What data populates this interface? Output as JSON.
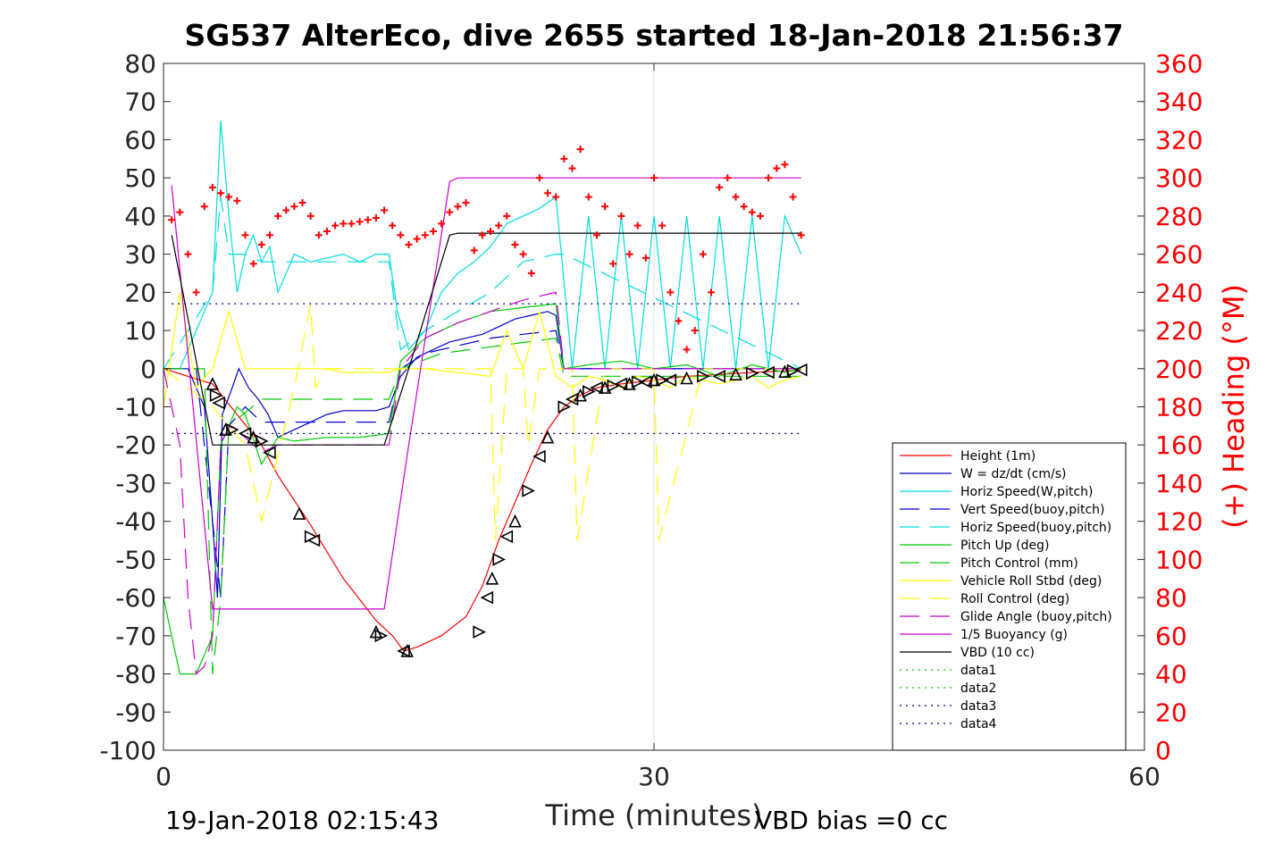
{
  "chart_data": {
    "type": "line",
    "title": "SG537 AlterEco, dive 2655 started 18-Jan-2018 21:56:37",
    "xlabel": "Time (minutes)",
    "ylabel_right": "(+) Heading (°M)",
    "footer_left": "19-Jan-2018 02:15:43",
    "footer_right": "VBD bias =0 cc",
    "xlim": [
      0,
      60
    ],
    "ylim_left": [
      -100,
      80
    ],
    "ylim_right": [
      0,
      360
    ],
    "x_ticks": [
      "0",
      "30",
      "60"
    ],
    "x_tick_values": [
      0,
      30,
      60
    ],
    "y_ticks_left": [
      "-100",
      "-90",
      "-80",
      "-70",
      "-60",
      "-50",
      "-40",
      "-30",
      "-20",
      "-10",
      "0",
      "10",
      "20",
      "30",
      "40",
      "50",
      "60",
      "70",
      "80"
    ],
    "y_tick_values_left": [
      -100,
      -90,
      -80,
      -70,
      -60,
      -50,
      -40,
      -30,
      -20,
      -10,
      0,
      10,
      20,
      30,
      40,
      50,
      60,
      70,
      80
    ],
    "y_ticks_right": [
      "0",
      "20",
      "40",
      "60",
      "80",
      "100",
      "120",
      "140",
      "160",
      "180",
      "200",
      "220",
      "240",
      "260",
      "280",
      "300",
      "320",
      "340",
      "360"
    ],
    "y_tick_values_right": [
      0,
      20,
      40,
      60,
      80,
      100,
      120,
      140,
      160,
      180,
      200,
      220,
      240,
      260,
      280,
      300,
      320,
      340,
      360
    ],
    "grid": "x at 30 only",
    "legend_position": "lower-right",
    "series": [
      {
        "name": "Height (1m)",
        "color": "#ff0000",
        "style": "solid",
        "x": [
          0,
          3,
          6,
          7,
          9,
          11,
          13,
          14,
          14.7,
          15.5,
          17,
          18.5,
          19.5,
          20.5,
          21.5,
          22.5,
          23.5,
          24.5,
          25.5,
          26.5,
          28,
          30,
          32,
          34,
          36,
          38,
          39
        ],
        "y": [
          0,
          -4,
          -20,
          -28,
          -41,
          -55,
          -66,
          -70,
          -74,
          -73,
          -70,
          -65,
          -57,
          -45,
          -35,
          -25,
          -16,
          -10,
          -7,
          -5,
          -4,
          -3,
          -2,
          -1.5,
          -1,
          -0.6,
          -0.3
        ]
      },
      {
        "name": "W = dz/dt (cm/s)",
        "color": "#0000cc",
        "style": "solid",
        "x": [
          0,
          1.5,
          2.5,
          3,
          3.3,
          3.6,
          4.2,
          4.6,
          5.2,
          5.8,
          6.4,
          7,
          8,
          9,
          10,
          11,
          12,
          13,
          13.8,
          14.5,
          15.5,
          16.5,
          17.5,
          18.5,
          19.5,
          20.5,
          21.5,
          22.5,
          23.5,
          24,
          24.5,
          25.5,
          27,
          29,
          31,
          33,
          35,
          37,
          39
        ],
        "y": [
          0,
          0,
          -10,
          -40,
          -60,
          -12,
          -5,
          0,
          -5,
          -8,
          -12,
          -18,
          -16,
          -14,
          -12,
          -11,
          -11,
          -11,
          -10,
          -2,
          3,
          5,
          7,
          8,
          9,
          11,
          13,
          14,
          15,
          14,
          0,
          0,
          0,
          0,
          0,
          0,
          0,
          0,
          0
        ]
      },
      {
        "name": "Horiz Speed(W,pitch)",
        "color": "#00dddd",
        "style": "solid",
        "x": [
          0,
          1,
          2,
          3,
          3.5,
          4,
          4.5,
          5,
          5.5,
          6,
          6.5,
          7,
          8,
          9,
          10,
          11,
          12,
          13,
          13.8,
          14.3,
          15,
          16,
          17,
          18,
          19,
          20,
          21,
          22,
          23,
          24,
          25,
          26,
          27,
          28,
          29,
          30,
          31,
          32,
          33,
          34,
          35,
          36,
          37,
          38,
          39
        ],
        "y": [
          0,
          0,
          10,
          20,
          65,
          40,
          20,
          30,
          35,
          28,
          32,
          20,
          30,
          28,
          29,
          30,
          28,
          30,
          30,
          15,
          5,
          10,
          20,
          25,
          28,
          32,
          38,
          40,
          42,
          45,
          0,
          40,
          0,
          40,
          0,
          40,
          0,
          40,
          0,
          40,
          0,
          40,
          0,
          40,
          30
        ]
      },
      {
        "name": "Vert Speed(buoy,pitch)",
        "color": "#0000cc",
        "style": "dashed",
        "x": [
          0,
          2,
          3,
          3.5,
          4,
          5,
          6,
          13.8,
          14.5,
          16,
          18,
          20,
          22,
          24,
          24.5,
          39
        ],
        "y": [
          0,
          0,
          -40,
          -60,
          -15,
          -10,
          -14,
          -14,
          0,
          4,
          6,
          8,
          9,
          10,
          0,
          0
        ]
      },
      {
        "name": "Horiz Speed(buoy,pitch)",
        "color": "#00dddd",
        "style": "dashed",
        "x": [
          0,
          3,
          3.5,
          4,
          5,
          6,
          13.8,
          14.5,
          16,
          18,
          20,
          22,
          24,
          24.5,
          39
        ],
        "y": [
          0,
          20,
          45,
          30,
          30,
          28,
          28,
          5,
          10,
          15,
          20,
          28,
          30,
          30,
          0
        ]
      },
      {
        "name": "Pitch Up (deg)",
        "color": "#00cc00",
        "style": "solid",
        "x": [
          0,
          1,
          2,
          3,
          3.5,
          4,
          4.5,
          5,
          6,
          7,
          8,
          10,
          12,
          13.8,
          14.5,
          16,
          18,
          20,
          22,
          24,
          24.5,
          26,
          28,
          30,
          32,
          34,
          36,
          38,
          39
        ],
        "y": [
          -60,
          -80,
          -80,
          -70,
          -20,
          -15,
          -10,
          -12,
          -25,
          -18,
          -19,
          -18,
          -18,
          -17,
          2,
          8,
          12,
          15,
          16,
          17,
          0,
          1,
          2,
          0,
          1,
          -2,
          1,
          -1,
          0
        ]
      },
      {
        "name": "Pitch Control (mm)",
        "color": "#00cc00",
        "style": "dashed",
        "x": [
          0,
          2.5,
          3,
          3.5,
          4,
          6,
          13.8,
          14.5,
          17,
          24,
          24.5,
          39
        ],
        "y": [
          0,
          0,
          -80,
          -60,
          -15,
          -8,
          -8,
          0,
          4,
          8,
          -2,
          -2
        ]
      },
      {
        "name": "Vehicle Roll Stbd (deg)",
        "color": "#ffff00",
        "style": "solid",
        "x": [
          0,
          1,
          2,
          3,
          4,
          5,
          6,
          7,
          8,
          9,
          10,
          11,
          12,
          13,
          13.8,
          14.5,
          16,
          18,
          20,
          21,
          22,
          23,
          24,
          25,
          26,
          27,
          28,
          29,
          30,
          31,
          32,
          33,
          34,
          35,
          36,
          37,
          38,
          39
        ],
        "y": [
          -10,
          20,
          -5,
          0,
          15,
          0,
          0,
          0,
          0,
          0,
          0,
          -1,
          -1,
          -1,
          -1,
          0,
          0,
          -1,
          -2,
          10,
          0,
          15,
          -2,
          -5,
          -2,
          -3,
          -5,
          -2,
          -3,
          -5,
          -2,
          -3,
          -4,
          -3,
          -2,
          -5,
          -3,
          -2
        ]
      },
      {
        "name": "Roll Control (deg)",
        "color": "#ffff00",
        "style": "dashed",
        "x": [
          0,
          3,
          5,
          6,
          8,
          9,
          9.3,
          10,
          14,
          20,
          20.3,
          21,
          22,
          22.3,
          23,
          25,
          25.3,
          27,
          30,
          30.3,
          33,
          36,
          39
        ],
        "y": [
          0,
          -10,
          -20,
          -40,
          -5,
          17,
          -5,
          0,
          0,
          0,
          -45,
          0,
          0,
          -20,
          0,
          0,
          -45,
          0,
          0,
          -45,
          0,
          0,
          0
        ]
      },
      {
        "name": "Glide Angle (buoy,pitch)",
        "color": "#cc00cc",
        "style": "dashed",
        "x": [
          0,
          1,
          1.5,
          2,
          2.5,
          3,
          3.5,
          4,
          5,
          6,
          7,
          8,
          10,
          13.8,
          14.5,
          16,
          18,
          20,
          22,
          24,
          24.5,
          39
        ],
        "y": [
          0,
          -20,
          -60,
          -80,
          -78,
          -70,
          -20,
          -15,
          -18,
          -22,
          -20,
          -20,
          -20,
          -20,
          0,
          8,
          12,
          15,
          18,
          20,
          0,
          0
        ]
      },
      {
        "name": "1/5 Buoyancy (g)",
        "color": "#cc00cc",
        "style": "solid",
        "x": [
          0.5,
          3,
          3.3,
          13.5,
          15,
          17.5,
          18,
          39
        ],
        "y": [
          48,
          -63,
          -63,
          -63,
          -20,
          49,
          50,
          50
        ]
      },
      {
        "name": "VBD (10 cc)",
        "color": "#000000",
        "style": "solid",
        "x": [
          0.5,
          3,
          3.3,
          13.5,
          15,
          17.5,
          18,
          39
        ],
        "y": [
          35,
          -20,
          -20,
          -20,
          0,
          35,
          35.5,
          35.5
        ]
      },
      {
        "name": "data1",
        "color": "#00cc00",
        "style": "dotted",
        "x": [],
        "y": []
      },
      {
        "name": "data2",
        "color": "#00cc00",
        "style": "dotted",
        "x": [],
        "y": []
      },
      {
        "name": "data3",
        "color": "#000080",
        "style": "dotted",
        "x": [
          0.5,
          39
        ],
        "y": [
          17,
          17
        ]
      },
      {
        "name": "data4",
        "color": "#000080",
        "style": "dotted",
        "x": [
          0.5,
          39
        ],
        "y": [
          -17,
          -17
        ]
      }
    ],
    "heading": {
      "color": "#ff0000",
      "marker": "+",
      "axis": "right",
      "x": [
        0.5,
        1,
        1.5,
        2,
        2.5,
        3,
        3.5,
        4,
        4.5,
        5,
        5.5,
        6,
        6.5,
        7,
        7.5,
        8,
        8.5,
        9,
        9.5,
        10,
        10.5,
        11,
        11.5,
        12,
        12.5,
        13,
        13.5,
        14,
        14.5,
        15,
        15.5,
        16,
        16.5,
        17,
        17.5,
        18,
        18.5,
        19,
        19.5,
        20,
        20.5,
        21,
        21.5,
        22,
        22.5,
        23,
        23.5,
        24,
        24.5,
        25,
        25.5,
        26,
        26.5,
        27,
        27.5,
        28,
        28.5,
        29,
        29.5,
        30,
        30.5,
        31,
        31.5,
        32,
        32.5,
        33,
        33.5,
        34,
        34.5,
        35,
        35.5,
        36,
        36.5,
        37,
        37.5,
        38,
        38.5,
        39
      ],
      "y": [
        278,
        282,
        260,
        240,
        285,
        295,
        292,
        290,
        288,
        270,
        255,
        265,
        270,
        280,
        283,
        285,
        287,
        280,
        270,
        272,
        275,
        276,
        276,
        277,
        278,
        279,
        283,
        275,
        270,
        265,
        268,
        270,
        272,
        276,
        282,
        285,
        287,
        262,
        270,
        272,
        275,
        280,
        265,
        260,
        250,
        300,
        292,
        290,
        310,
        305,
        315,
        290,
        270,
        285,
        255,
        280,
        260,
        275,
        258,
        300,
        275,
        240,
        225,
        210,
        220,
        260,
        240,
        295,
        300,
        290,
        285,
        282,
        280,
        300,
        305,
        307,
        290,
        270
      ]
    },
    "dives": {
      "marker": "triangles",
      "color": "#000000",
      "x": [
        3,
        3.2,
        3.4,
        3.8,
        4.2,
        5,
        5.5,
        6,
        6.5,
        8.3,
        9,
        9.2,
        13,
        13.3,
        14.7,
        14.9,
        19.3,
        19.8,
        20.1,
        20.5,
        21,
        21.5,
        22.3,
        23,
        23.5,
        24.5,
        25,
        25.5,
        26,
        26.5,
        27,
        27.5,
        28,
        28.5,
        29,
        29.5,
        30,
        30.5,
        31,
        32,
        33,
        34,
        35,
        36,
        37,
        38,
        38.5,
        39
      ],
      "y": [
        -4,
        -7,
        -9,
        -16,
        -16,
        -17,
        -18,
        -19,
        -22,
        -38,
        -44,
        -45,
        -69,
        -70,
        -74,
        -74,
        -69,
        -60,
        -55,
        -50,
        -44,
        -40,
        -32,
        -23,
        -18,
        -10,
        -8,
        -7,
        -6,
        -5,
        -5,
        -4.5,
        -4,
        -4,
        -3.5,
        -3.5,
        -3,
        -3,
        -3,
        -2.5,
        -2,
        -2,
        -1.5,
        -1.2,
        -1,
        -0.8,
        -0.5,
        -0.3
      ]
    }
  }
}
